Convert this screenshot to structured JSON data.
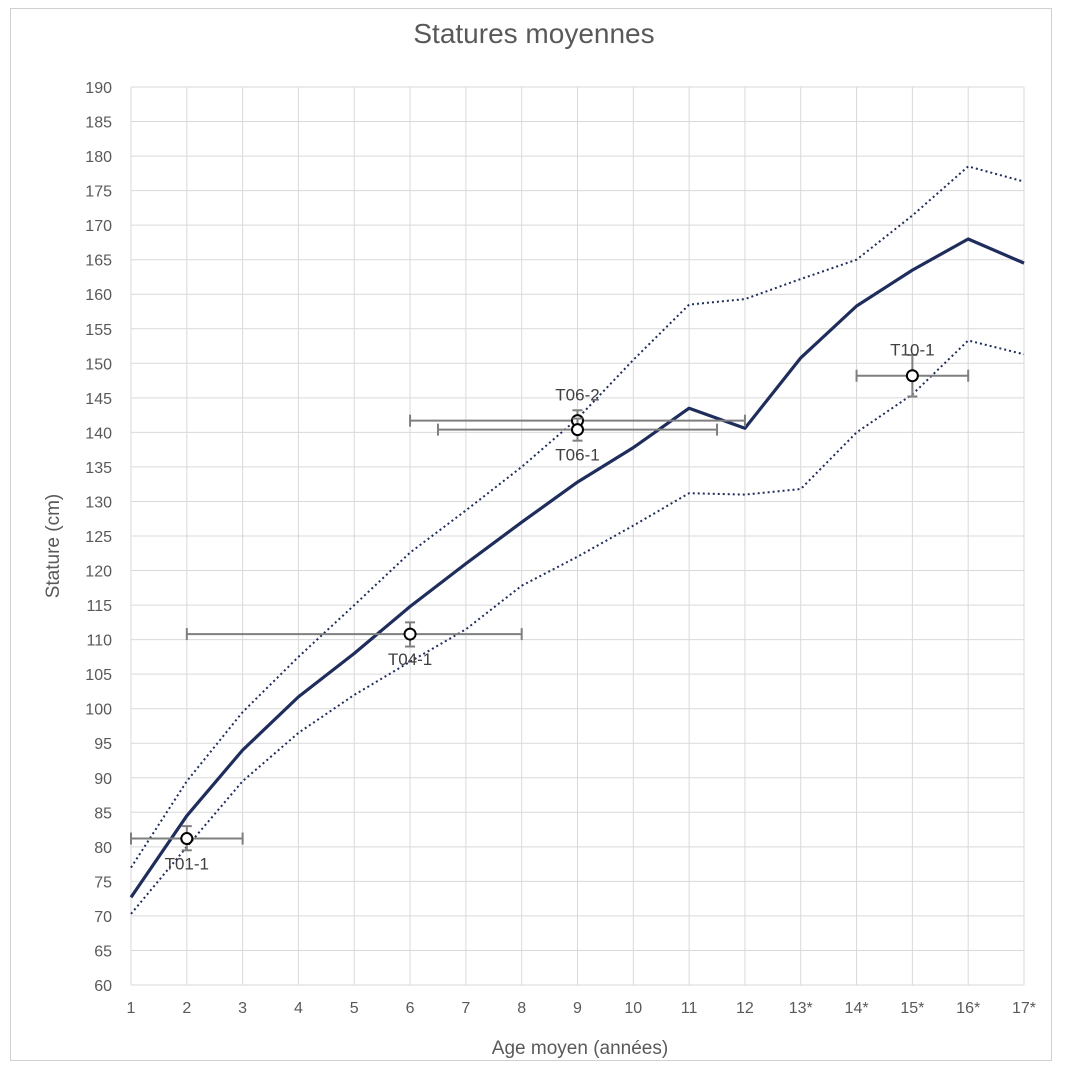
{
  "chart_data": {
    "type": "line",
    "title": "Statures moyennes",
    "xlabel": "Age moyen (années)",
    "ylabel": "Stature (cm)",
    "ylim": [
      60,
      190
    ],
    "ytick_step": 5,
    "grid": true,
    "categories": [
      "1",
      "2",
      "3",
      "4",
      "5",
      "6",
      "7",
      "8",
      "9",
      "10",
      "11",
      "12",
      "13*",
      "14*",
      "15*",
      "16*",
      "17*"
    ],
    "series": [
      {
        "role": "mean",
        "color": "#1f2d5c",
        "style": "solid",
        "values": [
          72.7,
          84.5,
          94,
          101.7,
          108,
          114.8,
          121,
          127,
          132.8,
          137.8,
          143.5,
          140.6,
          150.8,
          158.3,
          163.5,
          168,
          164.5
        ]
      },
      {
        "role": "upper",
        "color": "#1f2d5c",
        "style": "dotted",
        "values": [
          77,
          89.5,
          99.5,
          107.5,
          115,
          122.6,
          128.7,
          135,
          142,
          150.5,
          158.5,
          159.3,
          162.2,
          165,
          171.4,
          178.5,
          176.3
        ]
      },
      {
        "role": "lower",
        "color": "#1f2d5c",
        "style": "dotted",
        "values": [
          70.3,
          80,
          89.5,
          96.5,
          102,
          106.8,
          111.5,
          117.8,
          122,
          126.5,
          131.2,
          131,
          131.8,
          140,
          145.5,
          153.3,
          151.3
        ]
      }
    ],
    "points": [
      {
        "label": "T01-1",
        "x": 2,
        "y": 81.2,
        "xerr": [
          1,
          3
        ],
        "yerr": [
          79.5,
          83
        ],
        "label_pos": "below"
      },
      {
        "label": "T04-1",
        "x": 6,
        "y": 110.8,
        "xerr": [
          2,
          8
        ],
        "yerr": [
          109,
          112.5
        ],
        "label_pos": "below"
      },
      {
        "label": "T06-2",
        "x": 9,
        "y": 141.7,
        "xerr": [
          6,
          12
        ],
        "yerr": [
          140.2,
          143.2
        ],
        "label_pos": "above"
      },
      {
        "label": "T06-1",
        "x": 9,
        "y": 140.4,
        "xerr": [
          6.5,
          11.5
        ],
        "yerr": [
          138.8,
          142
        ],
        "label_pos": "below"
      },
      {
        "label": "T10-1",
        "x": 15,
        "y": 148.2,
        "xerr": [
          14,
          16
        ],
        "yerr": [
          145.2,
          151.2
        ],
        "label_pos": "above"
      }
    ]
  }
}
